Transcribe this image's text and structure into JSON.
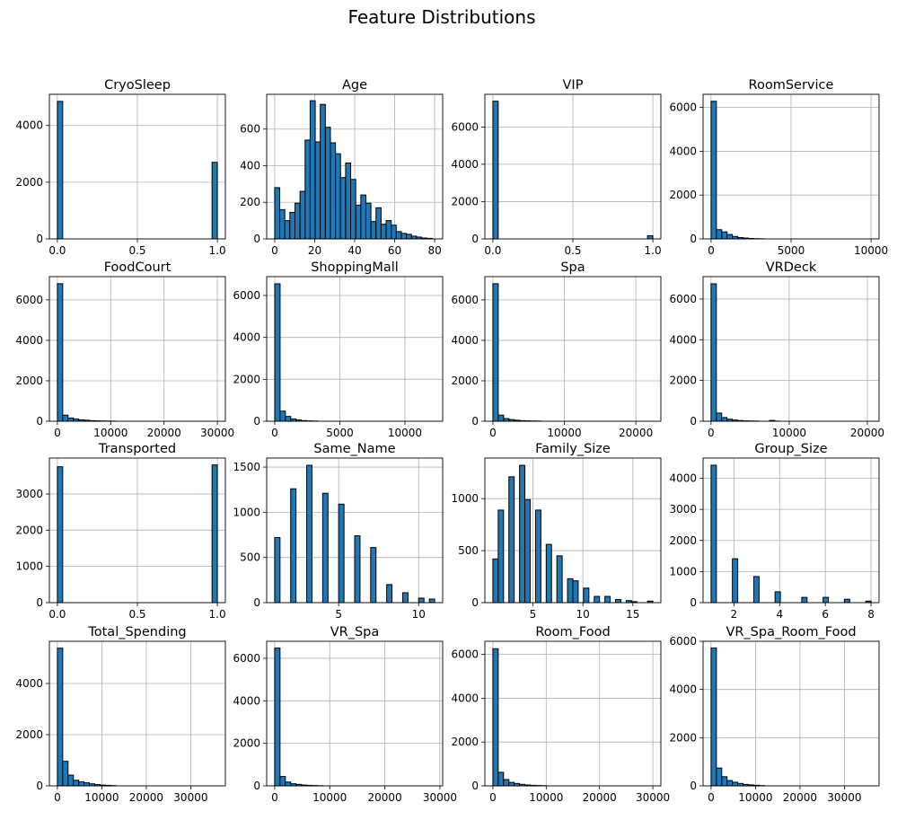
{
  "figure": {
    "title": "Feature Distributions"
  },
  "style": {
    "bar_fill": "#1f77b4",
    "bar_edge": "#000000",
    "grid": "#b0b0b0"
  },
  "chart_data": [
    {
      "type": "bar",
      "title": "CryoSleep",
      "grid": true,
      "xlim": [
        -0.05,
        1.05
      ],
      "xticks": [
        0.0,
        0.5,
        1.0
      ],
      "xtick_labels": [
        "0.0",
        "0.5",
        "1.0"
      ],
      "ylim": [
        0,
        5100
      ],
      "yticks": [
        0,
        2000,
        4000
      ],
      "ytick_labels": [
        "0",
        "2000",
        "4000"
      ],
      "bins": [
        [
          0.0,
          0.0333,
          4850
        ],
        [
          0.9667,
          1.0,
          2700
        ]
      ]
    },
    {
      "type": "bar",
      "title": "Age",
      "grid": true,
      "xlim": [
        -4,
        84
      ],
      "xticks": [
        0,
        20,
        40,
        60,
        80
      ],
      "xtick_labels": [
        "0",
        "20",
        "40",
        "60",
        "80"
      ],
      "ylim": [
        0,
        790
      ],
      "yticks": [
        0,
        200,
        400,
        600
      ],
      "ytick_labels": [
        "0",
        "200",
        "400",
        "600"
      ],
      "bins": [
        [
          0.0,
          2.53,
          280
        ],
        [
          2.53,
          5.07,
          160
        ],
        [
          5.07,
          7.6,
          100
        ],
        [
          7.6,
          10.13,
          145
        ],
        [
          10.13,
          12.67,
          195
        ],
        [
          12.67,
          15.2,
          260
        ],
        [
          15.2,
          17.73,
          540
        ],
        [
          17.73,
          20.27,
          755
        ],
        [
          20.27,
          22.8,
          530
        ],
        [
          22.8,
          25.33,
          735
        ],
        [
          25.33,
          27.87,
          610
        ],
        [
          27.87,
          30.4,
          525
        ],
        [
          30.4,
          32.93,
          465
        ],
        [
          32.93,
          35.47,
          335
        ],
        [
          35.47,
          38.0,
          415
        ],
        [
          38.0,
          40.53,
          325
        ],
        [
          40.53,
          43.07,
          185
        ],
        [
          43.07,
          45.6,
          240
        ],
        [
          45.6,
          48.13,
          195
        ],
        [
          48.13,
          50.67,
          95
        ],
        [
          50.67,
          53.2,
          170
        ],
        [
          53.2,
          55.73,
          80
        ],
        [
          55.73,
          58.27,
          100
        ],
        [
          58.27,
          60.8,
          75
        ],
        [
          60.8,
          63.33,
          40
        ],
        [
          63.33,
          65.87,
          30
        ],
        [
          65.87,
          68.4,
          25
        ],
        [
          68.4,
          70.93,
          15
        ],
        [
          70.93,
          73.47,
          10
        ],
        [
          73.47,
          76.0,
          5
        ],
        [
          76.0,
          79.0,
          3
        ]
      ]
    },
    {
      "type": "bar",
      "title": "VIP",
      "grid": true,
      "xlim": [
        -0.05,
        1.05
      ],
      "xticks": [
        0.0,
        0.5,
        1.0
      ],
      "xtick_labels": [
        "0.0",
        "0.5",
        "1.0"
      ],
      "ylim": [
        0,
        7750
      ],
      "yticks": [
        0,
        2000,
        4000,
        6000
      ],
      "ytick_labels": [
        "0",
        "2000",
        "4000",
        "6000"
      ],
      "bins": [
        [
          0.0,
          0.0333,
          7380
        ],
        [
          0.9667,
          1.0,
          170
        ]
      ]
    },
    {
      "type": "bar",
      "title": "RoomService",
      "grid": true,
      "xlim": [
        -500,
        10500
      ],
      "xticks": [
        0,
        5000,
        10000
      ],
      "xtick_labels": [
        "0",
        "5000",
        "10000"
      ],
      "ylim": [
        0,
        6600
      ],
      "yticks": [
        0,
        2000,
        4000,
        6000
      ],
      "ytick_labels": [
        "0",
        "2000",
        "4000",
        "6000"
      ],
      "bins": [
        [
          0,
          333,
          6280
        ],
        [
          333,
          667,
          420
        ],
        [
          667,
          1000,
          320
        ],
        [
          1000,
          1333,
          200
        ],
        [
          1333,
          1667,
          110
        ],
        [
          1667,
          2000,
          60
        ],
        [
          2000,
          2333,
          40
        ],
        [
          2333,
          2667,
          20
        ],
        [
          2667,
          3000,
          10
        ],
        [
          3000,
          3333,
          5
        ]
      ]
    },
    {
      "type": "bar",
      "title": "FoodCourt",
      "grid": true,
      "xlim": [
        -1500,
        31500
      ],
      "xticks": [
        0,
        10000,
        20000,
        30000
      ],
      "xtick_labels": [
        "0",
        "10000",
        "20000",
        "30000"
      ],
      "ylim": [
        0,
        7150
      ],
      "yticks": [
        0,
        2000,
        4000,
        6000
      ],
      "ytick_labels": [
        "0",
        "2000",
        "4000",
        "6000"
      ],
      "bins": [
        [
          0,
          1000,
          6800
        ],
        [
          1000,
          2000,
          300
        ],
        [
          2000,
          3000,
          160
        ],
        [
          3000,
          4000,
          110
        ],
        [
          4000,
          5000,
          70
        ],
        [
          5000,
          6000,
          50
        ],
        [
          6000,
          7000,
          30
        ],
        [
          7000,
          8000,
          20
        ],
        [
          8000,
          9000,
          12
        ],
        [
          9000,
          10000,
          8
        ],
        [
          10000,
          11000,
          5
        ]
      ]
    },
    {
      "type": "bar",
      "title": "ShoppingMall",
      "grid": true,
      "xlim": [
        -620,
        12900
      ],
      "xticks": [
        0,
        5000,
        10000
      ],
      "xtick_labels": [
        "0",
        "5000",
        "10000"
      ],
      "ylim": [
        0,
        6900
      ],
      "yticks": [
        0,
        2000,
        4000,
        6000
      ],
      "ytick_labels": [
        "0",
        "2000",
        "4000",
        "6000"
      ],
      "bins": [
        [
          0,
          410,
          6560
        ],
        [
          410,
          820,
          480
        ],
        [
          820,
          1230,
          230
        ],
        [
          1230,
          1640,
          110
        ],
        [
          1640,
          2050,
          60
        ],
        [
          2050,
          2460,
          30
        ],
        [
          2460,
          2870,
          15
        ],
        [
          2870,
          3280,
          8
        ]
      ]
    },
    {
      "type": "bar",
      "title": "Spa",
      "grid": true,
      "xlim": [
        -1120,
        23500
      ],
      "xticks": [
        0,
        10000,
        20000
      ],
      "xtick_labels": [
        "0",
        "10000",
        "20000"
      ],
      "ylim": [
        0,
        7150
      ],
      "yticks": [
        0,
        2000,
        4000,
        6000
      ],
      "ytick_labels": [
        "0",
        "2000",
        "4000",
        "6000"
      ],
      "bins": [
        [
          0,
          750,
          6800
        ],
        [
          750,
          1500,
          300
        ],
        [
          1500,
          2250,
          130
        ],
        [
          2250,
          3000,
          80
        ],
        [
          3000,
          3750,
          50
        ],
        [
          3750,
          4500,
          30
        ],
        [
          4500,
          5250,
          20
        ],
        [
          5250,
          6000,
          12
        ],
        [
          6000,
          6750,
          8
        ]
      ]
    },
    {
      "type": "bar",
      "title": "VRDeck",
      "grid": true,
      "xlim": [
        -1020,
        21500
      ],
      "xticks": [
        0,
        10000,
        20000
      ],
      "xtick_labels": [
        "0",
        "10000",
        "20000"
      ],
      "ylim": [
        0,
        7100
      ],
      "yticks": [
        0,
        2000,
        4000,
        6000
      ],
      "ytick_labels": [
        "0",
        "2000",
        "4000",
        "6000"
      ],
      "bins": [
        [
          0,
          680,
          6750
        ],
        [
          680,
          1360,
          400
        ],
        [
          1360,
          2040,
          180
        ],
        [
          2040,
          2720,
          100
        ],
        [
          2720,
          3400,
          60
        ],
        [
          3400,
          4080,
          35
        ],
        [
          4080,
          4760,
          20
        ],
        [
          4760,
          5440,
          12
        ],
        [
          5440,
          6120,
          8
        ],
        [
          7480,
          8160,
          40
        ],
        [
          8160,
          8840,
          5
        ]
      ]
    },
    {
      "type": "bar",
      "title": "Transported",
      "grid": true,
      "xlim": [
        -0.05,
        1.05
      ],
      "xticks": [
        0.0,
        0.5,
        1.0
      ],
      "xtick_labels": [
        "0.0",
        "0.5",
        "1.0"
      ],
      "ylim": [
        0,
        3990
      ],
      "yticks": [
        0,
        1000,
        2000,
        3000
      ],
      "ytick_labels": [
        "0",
        "1000",
        "2000",
        "3000"
      ],
      "bins": [
        [
          0.0,
          0.0333,
          3750
        ],
        [
          0.9667,
          1.0,
          3800
        ]
      ]
    },
    {
      "type": "bar",
      "title": "Same_Name",
      "grid": true,
      "xlim": [
        0.5,
        11.5
      ],
      "xticks": [
        5,
        10
      ],
      "xtick_labels": [
        "5",
        "10"
      ],
      "ylim": [
        0,
        1600
      ],
      "yticks": [
        0,
        500,
        1000,
        1500
      ],
      "ytick_labels": [
        "0",
        "500",
        "1000",
        "1500"
      ],
      "bins": [
        [
          1.0,
          1.333,
          720
        ],
        [
          2.0,
          2.333,
          1260
        ],
        [
          3.0,
          3.333,
          1520
        ],
        [
          4.0,
          4.333,
          1210
        ],
        [
          5.0,
          5.333,
          1090
        ],
        [
          6.0,
          6.333,
          740
        ],
        [
          7.0,
          7.333,
          610
        ],
        [
          8.0,
          8.333,
          200
        ],
        [
          9.0,
          9.333,
          110
        ],
        [
          10.0,
          10.333,
          50
        ],
        [
          10.667,
          11.0,
          40
        ]
      ]
    },
    {
      "type": "bar",
      "title": "Family_Size",
      "grid": true,
      "xlim": [
        0.2,
        17.8
      ],
      "xticks": [
        5,
        10,
        15
      ],
      "xtick_labels": [
        "5",
        "10",
        "15"
      ],
      "ylim": [
        0,
        1390
      ],
      "yticks": [
        0,
        500,
        1000
      ],
      "ytick_labels": [
        "0",
        "500",
        "1000"
      ],
      "bins": [
        [
          1.0,
          1.533,
          420
        ],
        [
          1.533,
          2.067,
          890
        ],
        [
          2.6,
          3.133,
          1210
        ],
        [
          3.667,
          4.2,
          1320
        ],
        [
          4.2,
          4.733,
          990
        ],
        [
          5.267,
          5.8,
          890
        ],
        [
          6.333,
          6.867,
          560
        ],
        [
          7.4,
          7.933,
          450
        ],
        [
          8.467,
          9.0,
          230
        ],
        [
          9.0,
          9.533,
          210
        ],
        [
          10.067,
          10.6,
          140
        ],
        [
          11.133,
          11.667,
          60
        ],
        [
          12.2,
          12.733,
          60
        ],
        [
          13.267,
          13.8,
          30
        ],
        [
          14.333,
          14.867,
          20
        ],
        [
          14.867,
          15.4,
          10
        ],
        [
          16.467,
          17.0,
          15
        ]
      ]
    },
    {
      "type": "bar",
      "title": "Group_Size",
      "grid": true,
      "xlim": [
        0.65,
        8.35
      ],
      "xticks": [
        2,
        4,
        6,
        8
      ],
      "xtick_labels": [
        "2",
        "4",
        "6",
        "8"
      ],
      "ylim": [
        0,
        4650
      ],
      "yticks": [
        0,
        1000,
        2000,
        3000,
        4000
      ],
      "ytick_labels": [
        "0",
        "1000",
        "2000",
        "3000",
        "4000"
      ],
      "bins": [
        [
          1.0,
          1.233,
          4420
        ],
        [
          1.933,
          2.167,
          1410
        ],
        [
          2.867,
          3.1,
          840
        ],
        [
          3.8,
          4.033,
          350
        ],
        [
          4.967,
          5.2,
          170
        ],
        [
          5.9,
          6.133,
          170
        ],
        [
          6.833,
          7.067,
          110
        ],
        [
          7.767,
          8.0,
          50
        ]
      ]
    },
    {
      "type": "bar",
      "title": "Total_Spending",
      "grid": true,
      "xlim": [
        -1800,
        37800
      ],
      "xticks": [
        0,
        10000,
        20000,
        30000
      ],
      "xtick_labels": [
        "0",
        "10000",
        "20000",
        "30000"
      ],
      "ylim": [
        0,
        5650
      ],
      "yticks": [
        0,
        2000,
        4000
      ],
      "ytick_labels": [
        "0",
        "2000",
        "4000"
      ],
      "bins": [
        [
          0,
          1200,
          5380
        ],
        [
          1200,
          2400,
          960
        ],
        [
          2400,
          3600,
          420
        ],
        [
          3600,
          4800,
          220
        ],
        [
          4800,
          6000,
          160
        ],
        [
          6000,
          7200,
          120
        ],
        [
          7200,
          8400,
          80
        ],
        [
          8400,
          9600,
          50
        ],
        [
          9600,
          10800,
          30
        ],
        [
          10800,
          12000,
          20
        ],
        [
          12000,
          13200,
          10
        ]
      ]
    },
    {
      "type": "bar",
      "title": "VR_Spa",
      "grid": true,
      "xlim": [
        -1450,
        30500
      ],
      "xticks": [
        0,
        10000,
        20000,
        30000
      ],
      "xtick_labels": [
        "0",
        "10000",
        "20000",
        "30000"
      ],
      "ylim": [
        0,
        6800
      ],
      "yticks": [
        0,
        2000,
        4000,
        6000
      ],
      "ytick_labels": [
        "0",
        "2000",
        "4000",
        "6000"
      ],
      "bins": [
        [
          0,
          970,
          6480
        ],
        [
          970,
          1940,
          440
        ],
        [
          1940,
          2910,
          180
        ],
        [
          2910,
          3880,
          100
        ],
        [
          3880,
          4850,
          70
        ],
        [
          4850,
          5820,
          40
        ],
        [
          5820,
          6790,
          25
        ],
        [
          6790,
          7760,
          15
        ],
        [
          7760,
          8730,
          8
        ]
      ]
    },
    {
      "type": "bar",
      "title": "Room_Food",
      "grid": true,
      "xlim": [
        -1500,
        31500
      ],
      "xticks": [
        0,
        10000,
        20000,
        30000
      ],
      "xtick_labels": [
        "0",
        "10000",
        "20000",
        "30000"
      ],
      "ylim": [
        0,
        6600
      ],
      "yticks": [
        0,
        2000,
        4000,
        6000
      ],
      "ytick_labels": [
        "0",
        "2000",
        "4000",
        "6000"
      ],
      "bins": [
        [
          0,
          1000,
          6260
        ],
        [
          1000,
          2000,
          620
        ],
        [
          2000,
          3000,
          290
        ],
        [
          3000,
          4000,
          160
        ],
        [
          4000,
          5000,
          110
        ],
        [
          5000,
          6000,
          70
        ],
        [
          6000,
          7000,
          40
        ],
        [
          7000,
          8000,
          25
        ],
        [
          8000,
          9000,
          15
        ],
        [
          9000,
          10000,
          8
        ]
      ]
    },
    {
      "type": "bar",
      "title": "VR_Spa_Room_Food",
      "grid": true,
      "xlim": [
        -1800,
        37800
      ],
      "xticks": [
        0,
        10000,
        20000,
        30000
      ],
      "xtick_labels": [
        "0",
        "10000",
        "20000",
        "30000"
      ],
      "ylim": [
        0,
        6000
      ],
      "yticks": [
        0,
        2000,
        4000,
        6000
      ],
      "ytick_labels": [
        "0",
        "2000",
        "4000",
        "6000"
      ],
      "bins": [
        [
          0,
          1200,
          5720
        ],
        [
          1200,
          2400,
          740
        ],
        [
          2400,
          3600,
          380
        ],
        [
          3600,
          4800,
          220
        ],
        [
          4800,
          6000,
          150
        ],
        [
          6000,
          7200,
          100
        ],
        [
          7200,
          8400,
          60
        ],
        [
          8400,
          9600,
          40
        ],
        [
          9600,
          10800,
          25
        ],
        [
          10800,
          12000,
          12
        ]
      ]
    }
  ]
}
